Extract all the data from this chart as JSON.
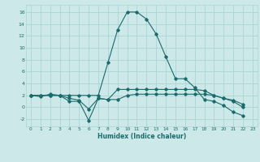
{
  "xlabel": "Humidex (Indice chaleur)",
  "background_color": "#cce8e8",
  "grid_color": "#aad4d4",
  "line_color": "#1a6b6b",
  "xlim": [
    -0.5,
    23.5
  ],
  "ylim": [
    -3.2,
    17.2
  ],
  "xticks": [
    0,
    1,
    2,
    3,
    4,
    5,
    6,
    7,
    8,
    9,
    10,
    11,
    12,
    13,
    14,
    15,
    16,
    17,
    18,
    19,
    20,
    21,
    22,
    23
  ],
  "yticks": [
    -2,
    0,
    2,
    4,
    6,
    8,
    10,
    12,
    14,
    16
  ],
  "series": [
    {
      "x": [
        0,
        1,
        2,
        3,
        4,
        5,
        6,
        7,
        8,
        9,
        10,
        11,
        12,
        13,
        14,
        15,
        16,
        17,
        18,
        19,
        20,
        21,
        22
      ],
      "y": [
        2,
        2,
        2,
        2,
        2,
        2,
        2,
        2,
        7.5,
        13,
        16,
        16,
        14.8,
        12.3,
        8.5,
        4.8,
        4.8,
        3.3,
        1.3,
        1.0,
        0.3,
        -0.8,
        -1.4
      ]
    },
    {
      "x": [
        0,
        1,
        2,
        3,
        4,
        5,
        6,
        7,
        8,
        9,
        10,
        11,
        12,
        13,
        14,
        15,
        16,
        17,
        18,
        19,
        20,
        21,
        22
      ],
      "y": [
        2,
        1.8,
        2.2,
        2.0,
        1.0,
        1.0,
        -2.2,
        1.5,
        1.3,
        1.3,
        2.0,
        2.2,
        2.2,
        2.2,
        2.2,
        2.2,
        2.2,
        2.2,
        2.2,
        2.0,
        1.5,
        1.0,
        0.0
      ]
    },
    {
      "x": [
        0,
        1,
        2,
        3,
        4,
        5,
        6,
        7,
        8,
        9,
        10,
        11,
        12,
        13,
        14,
        15,
        16,
        17,
        18,
        19,
        20,
        21,
        22
      ],
      "y": [
        2,
        2,
        2,
        2,
        1.5,
        1.2,
        -0.3,
        1.5,
        1.3,
        3.0,
        3.0,
        3.0,
        3.0,
        3.0,
        3.0,
        3.0,
        3.0,
        3.0,
        2.8,
        2.0,
        1.5,
        1.2,
        0.5
      ]
    }
  ],
  "figwidth": 3.2,
  "figheight": 2.0,
  "dpi": 100
}
